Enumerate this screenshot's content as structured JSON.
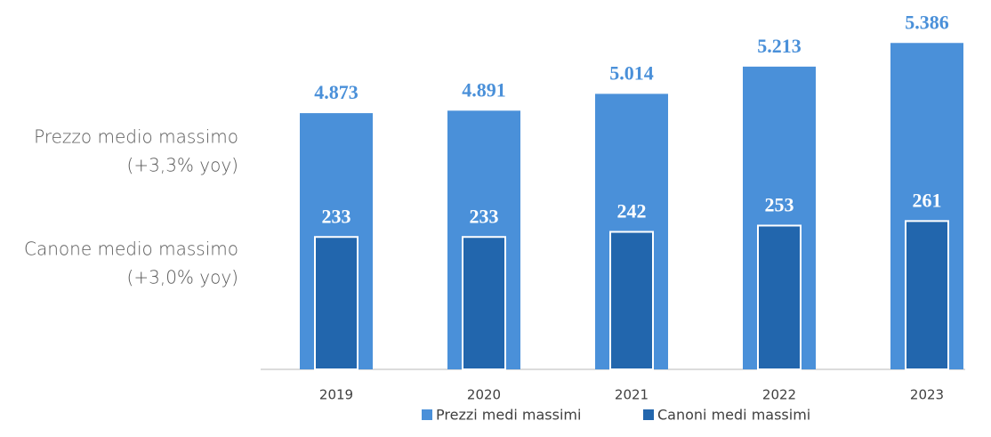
{
  "chart_data": {
    "type": "bar",
    "categories": [
      "2019",
      "2020",
      "2021",
      "2022",
      "2023"
    ],
    "series": [
      {
        "name": "Prezzi medi massimi",
        "color": "#4a90d9",
        "values": [
          4873,
          4891,
          5014,
          5213,
          5386
        ],
        "value_labels": [
          "4.873",
          "4.891",
          "5.014",
          "5.213",
          "5.386"
        ]
      },
      {
        "name": "Canoni medi massimi",
        "color": "#2266ad",
        "axis": "y2",
        "values": [
          233,
          233,
          242,
          253,
          261
        ]
      }
    ],
    "ylim": [
      3000,
      5700
    ],
    "y2lim": [
      0,
      650
    ],
    "annotations": [
      "Prezzo medio massimo",
      "(+3,3% yoy)",
      "Canone medio massimo",
      "(+3,0% yoy)"
    ],
    "legend": "bottom"
  }
}
